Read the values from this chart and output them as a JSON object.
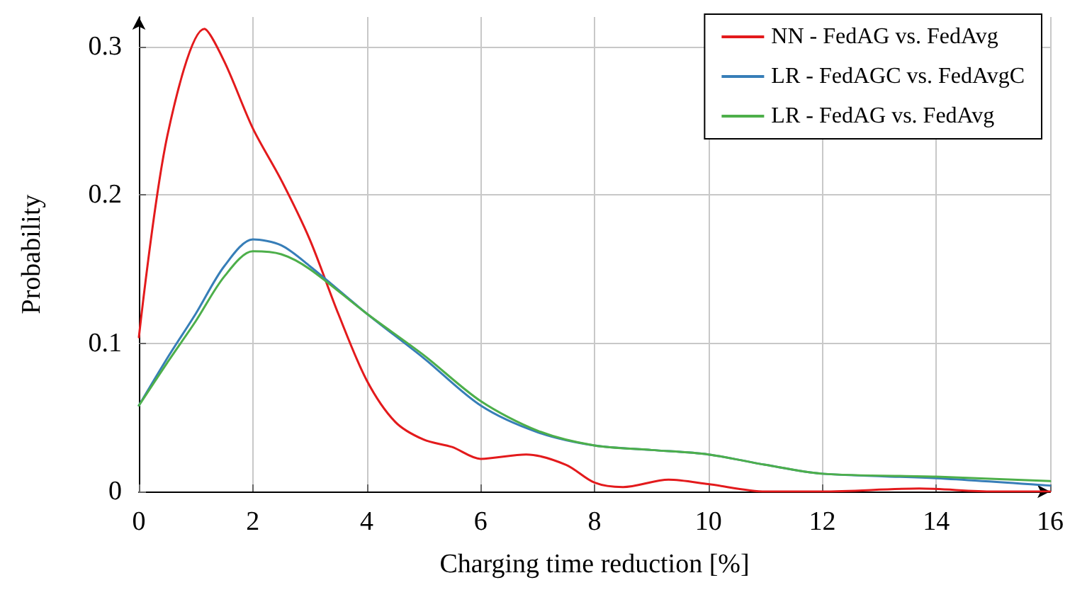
{
  "chart_data": {
    "type": "line",
    "xlabel": "Charging time reduction [%]",
    "ylabel": "Probability",
    "xlim": [
      0,
      16
    ],
    "ylim": [
      0,
      0.32
    ],
    "xticks": [
      0,
      2,
      4,
      6,
      8,
      10,
      12,
      14,
      16
    ],
    "yticks": [
      0,
      0.1,
      0.2,
      0.3
    ],
    "grid": true,
    "legend": "top right",
    "marker": "none",
    "line_style": "solid",
    "series": [
      {
        "name": "NN - FedAG vs. FedAvg",
        "color": "#e31a1c",
        "x": [
          0,
          0.5,
          1.15,
          1.5,
          2,
          2.5,
          3,
          3.5,
          4,
          4.5,
          5,
          5.5,
          6,
          6.8,
          7.5,
          8,
          8.5,
          9.3,
          10,
          11,
          12,
          13.7,
          15,
          16
        ],
        "values": [
          0.104,
          0.24,
          0.312,
          0.29,
          0.245,
          0.21,
          0.17,
          0.12,
          0.075,
          0.047,
          0.035,
          0.03,
          0.022,
          0.025,
          0.018,
          0.006,
          0.003,
          0.008,
          0.005,
          0.0,
          0.0,
          0.002,
          0.0,
          0.0
        ]
      },
      {
        "name": "LR - FedAGC vs. FedAvgC",
        "color": "#377eb8",
        "x": [
          0,
          0.5,
          1,
          1.5,
          2,
          2.5,
          3,
          4,
          5,
          6,
          7,
          8,
          9,
          10,
          11,
          12,
          14,
          16
        ],
        "values": [
          0.058,
          0.09,
          0.12,
          0.152,
          0.17,
          0.166,
          0.152,
          0.12,
          0.09,
          0.058,
          0.04,
          0.031,
          0.028,
          0.025,
          0.018,
          0.012,
          0.009,
          0.004
        ]
      },
      {
        "name": "LR - FedAG vs. FedAvg",
        "color": "#4daf4a",
        "x": [
          0,
          0.5,
          1,
          1.5,
          2,
          2.5,
          3,
          4,
          5,
          6,
          7,
          8,
          9,
          10,
          11,
          12,
          14,
          16
        ],
        "values": [
          0.058,
          0.087,
          0.115,
          0.145,
          0.162,
          0.16,
          0.15,
          0.12,
          0.092,
          0.061,
          0.041,
          0.031,
          0.028,
          0.025,
          0.018,
          0.012,
          0.01,
          0.007
        ]
      }
    ]
  }
}
